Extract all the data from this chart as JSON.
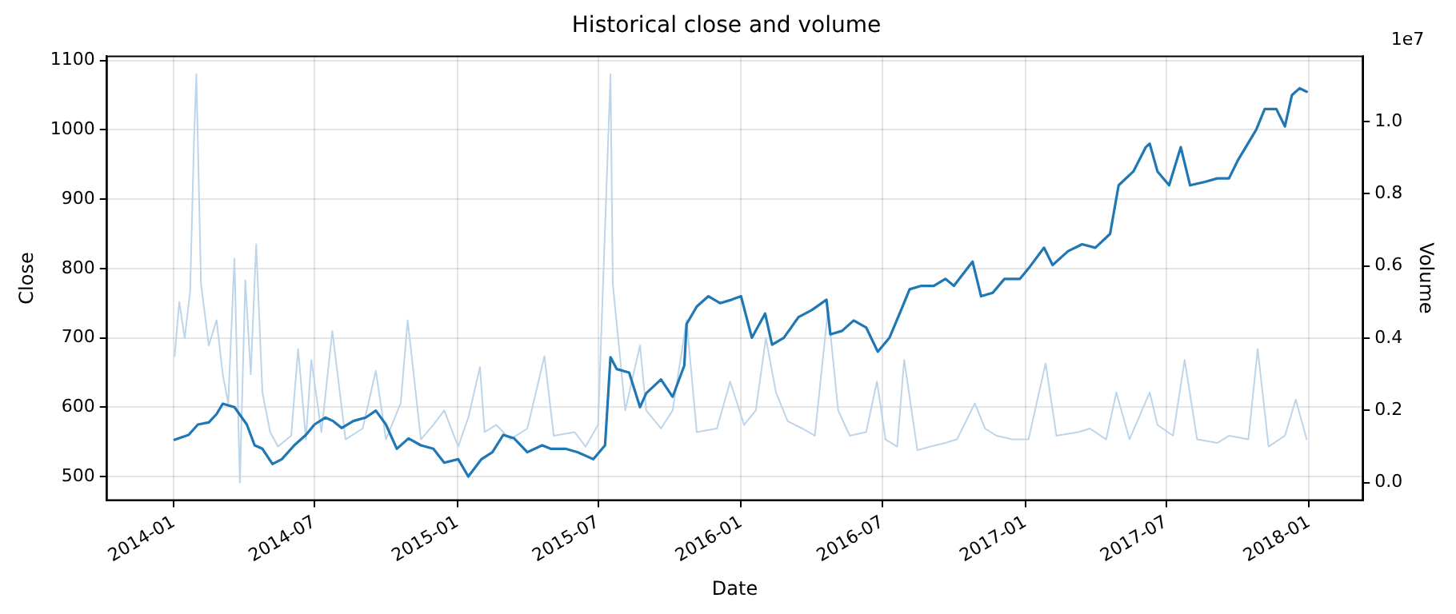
{
  "chart_data": {
    "type": "line",
    "title": "Historical close and volume",
    "xlabel": "Date",
    "ylabel": "Close",
    "y2label": "Volume",
    "annotations": [
      "1e7"
    ],
    "xlim": [
      "2013-10-06",
      "2018-03-12"
    ],
    "xticks": [
      "2014-01",
      "2014-07",
      "2015-01",
      "2015-07",
      "2016-01",
      "2016-07",
      "2017-01",
      "2017-07",
      "2018-01"
    ],
    "ylim": [
      465,
      1107
    ],
    "yticks": [
      500,
      600,
      700,
      800,
      900,
      1000,
      1100
    ],
    "y2lim": [
      -0.05,
      1.182
    ],
    "y2ticks": [
      {
        "value": 0,
        "label": "0.0"
      },
      0.2,
      0.4,
      0.6,
      0.8,
      {
        "value": 1,
        "label": "1.0"
      }
    ],
    "grid": true,
    "legend": false,
    "marker": "none",
    "line_style": "solid",
    "series": [
      {
        "axis": "y2",
        "color": "#bdd5ea",
        "x": [
          "2014-01-02",
          "2014-01-08",
          "2014-01-15",
          "2014-01-22",
          "2014-01-27",
          "2014-01-30",
          "2014-02-05",
          "2014-02-15",
          "2014-02-25",
          "2014-03-05",
          "2014-03-12",
          "2014-03-20",
          "2014-03-27",
          "2014-04-03",
          "2014-04-10",
          "2014-04-17",
          "2014-04-25",
          "2014-05-05",
          "2014-05-15",
          "2014-06-01",
          "2014-06-10",
          "2014-06-20",
          "2014-06-27",
          "2014-07-10",
          "2014-07-24",
          "2014-08-10",
          "2014-09-01",
          "2014-09-18",
          "2014-10-01",
          "2014-10-20",
          "2014-10-29",
          "2014-11-15",
          "2014-12-01",
          "2014-12-15",
          "2015-01-02",
          "2015-01-15",
          "2015-01-30",
          "2015-02-05",
          "2015-02-20",
          "2015-03-10",
          "2015-04-01",
          "2015-04-23",
          "2015-05-05",
          "2015-06-01",
          "2015-06-15",
          "2015-07-01",
          "2015-07-17",
          "2015-07-20",
          "2015-08-05",
          "2015-08-24",
          "2015-09-01",
          "2015-09-20",
          "2015-10-05",
          "2015-10-23",
          "2015-11-05",
          "2015-12-01",
          "2015-12-18",
          "2016-01-05",
          "2016-01-20",
          "2016-02-02",
          "2016-02-15",
          "2016-03-01",
          "2016-03-20",
          "2016-04-05",
          "2016-04-22",
          "2016-05-05",
          "2016-05-20",
          "2016-06-10",
          "2016-06-24",
          "2016-07-05",
          "2016-07-20",
          "2016-07-29",
          "2016-08-15",
          "2016-09-01",
          "2016-09-20",
          "2016-10-05",
          "2016-10-28",
          "2016-11-10",
          "2016-11-25",
          "2016-12-15",
          "2017-01-05",
          "2017-01-27",
          "2017-02-10",
          "2017-03-10",
          "2017-03-25",
          "2017-04-15",
          "2017-04-28",
          "2017-05-15",
          "2017-06-10",
          "2017-06-20",
          "2017-07-10",
          "2017-07-25",
          "2017-08-10",
          "2017-09-05",
          "2017-09-20",
          "2017-10-15",
          "2017-10-27",
          "2017-11-10",
          "2017-12-01",
          "2017-12-15",
          "2017-12-29"
        ],
        "values": [
          0.35,
          0.5,
          0.4,
          0.53,
          0.95,
          1.13,
          0.55,
          0.38,
          0.45,
          0.3,
          0.22,
          0.62,
          0,
          0.56,
          0.3,
          0.66,
          0.25,
          0.14,
          0.1,
          0.13,
          0.37,
          0.12,
          0.34,
          0.14,
          0.42,
          0.12,
          0.15,
          0.31,
          0.12,
          0.22,
          0.45,
          0.12,
          0.16,
          0.2,
          0.1,
          0.18,
          0.32,
          0.14,
          0.16,
          0.12,
          0.15,
          0.35,
          0.13,
          0.14,
          0.1,
          0.16,
          1.13,
          0.55,
          0.2,
          0.38,
          0.2,
          0.15,
          0.2,
          0.45,
          0.14,
          0.15,
          0.28,
          0.16,
          0.2,
          0.4,
          0.25,
          0.17,
          0.15,
          0.13,
          0.48,
          0.2,
          0.13,
          0.14,
          0.28,
          0.12,
          0.1,
          0.34,
          0.09,
          0.1,
          0.11,
          0.12,
          0.22,
          0.15,
          0.13,
          0.12,
          0.12,
          0.33,
          0.13,
          0.14,
          0.15,
          0.12,
          0.25,
          0.12,
          0.25,
          0.16,
          0.13,
          0.34,
          0.12,
          0.11,
          0.13,
          0.12,
          0.37,
          0.1,
          0.13,
          0.23,
          0.12
        ]
      },
      {
        "color": "#1f77b4",
        "x": [
          "2014-01-02",
          "2014-01-20",
          "2014-02-01",
          "2014-02-15",
          "2014-02-25",
          "2014-03-05",
          "2014-03-20",
          "2014-04-05",
          "2014-04-15",
          "2014-04-25",
          "2014-05-08",
          "2014-05-20",
          "2014-06-05",
          "2014-06-20",
          "2014-07-01",
          "2014-07-15",
          "2014-07-25",
          "2014-08-05",
          "2014-08-20",
          "2014-09-05",
          "2014-09-18",
          "2014-10-01",
          "2014-10-15",
          "2014-10-30",
          "2014-11-15",
          "2014-12-01",
          "2014-12-15",
          "2015-01-02",
          "2015-01-15",
          "2015-02-01",
          "2015-02-15",
          "2015-03-01",
          "2015-03-15",
          "2015-04-01",
          "2015-04-20",
          "2015-05-01",
          "2015-05-20",
          "2015-06-05",
          "2015-06-25",
          "2015-07-10",
          "2015-07-17",
          "2015-07-25",
          "2015-08-10",
          "2015-08-24",
          "2015-09-01",
          "2015-09-20",
          "2015-10-05",
          "2015-10-20",
          "2015-10-23",
          "2015-11-05",
          "2015-11-20",
          "2015-12-05",
          "2015-12-20",
          "2016-01-01",
          "2016-01-15",
          "2016-02-01",
          "2016-02-10",
          "2016-02-25",
          "2016-03-15",
          "2016-04-01",
          "2016-04-20",
          "2016-04-25",
          "2016-05-10",
          "2016-05-25",
          "2016-06-10",
          "2016-06-25",
          "2016-07-10",
          "2016-07-25",
          "2016-08-05",
          "2016-08-20",
          "2016-09-05",
          "2016-09-20",
          "2016-10-01",
          "2016-10-25",
          "2016-11-05",
          "2016-11-20",
          "2016-12-05",
          "2016-12-25",
          "2017-01-05",
          "2017-01-25",
          "2017-02-05",
          "2017-02-25",
          "2017-03-15",
          "2017-04-01",
          "2017-04-20",
          "2017-05-01",
          "2017-05-20",
          "2017-06-05",
          "2017-06-10",
          "2017-06-20",
          "2017-07-05",
          "2017-07-20",
          "2017-08-01",
          "2017-08-20",
          "2017-09-05",
          "2017-09-20",
          "2017-10-01",
          "2017-10-25",
          "2017-11-05",
          "2017-11-20",
          "2017-12-01",
          "2017-12-10",
          "2017-12-20",
          "2017-12-29"
        ],
        "values": [
          553,
          560,
          575,
          578,
          590,
          605,
          600,
          575,
          545,
          540,
          518,
          525,
          545,
          560,
          575,
          585,
          580,
          570,
          580,
          585,
          595,
          575,
          540,
          555,
          545,
          540,
          520,
          525,
          500,
          525,
          535,
          560,
          555,
          535,
          545,
          540,
          540,
          535,
          525,
          545,
          672,
          655,
          650,
          600,
          620,
          640,
          615,
          660,
          720,
          745,
          760,
          750,
          755,
          760,
          700,
          735,
          690,
          700,
          730,
          740,
          755,
          705,
          710,
          725,
          715,
          680,
          700,
          740,
          770,
          775,
          775,
          785,
          775,
          810,
          760,
          765,
          785,
          785,
          800,
          830,
          805,
          825,
          835,
          830,
          850,
          920,
          940,
          975,
          980,
          940,
          920,
          975,
          920,
          925,
          930,
          930,
          955,
          1000,
          1030,
          1030,
          1005,
          1050,
          1060,
          1055
        ]
      }
    ]
  }
}
